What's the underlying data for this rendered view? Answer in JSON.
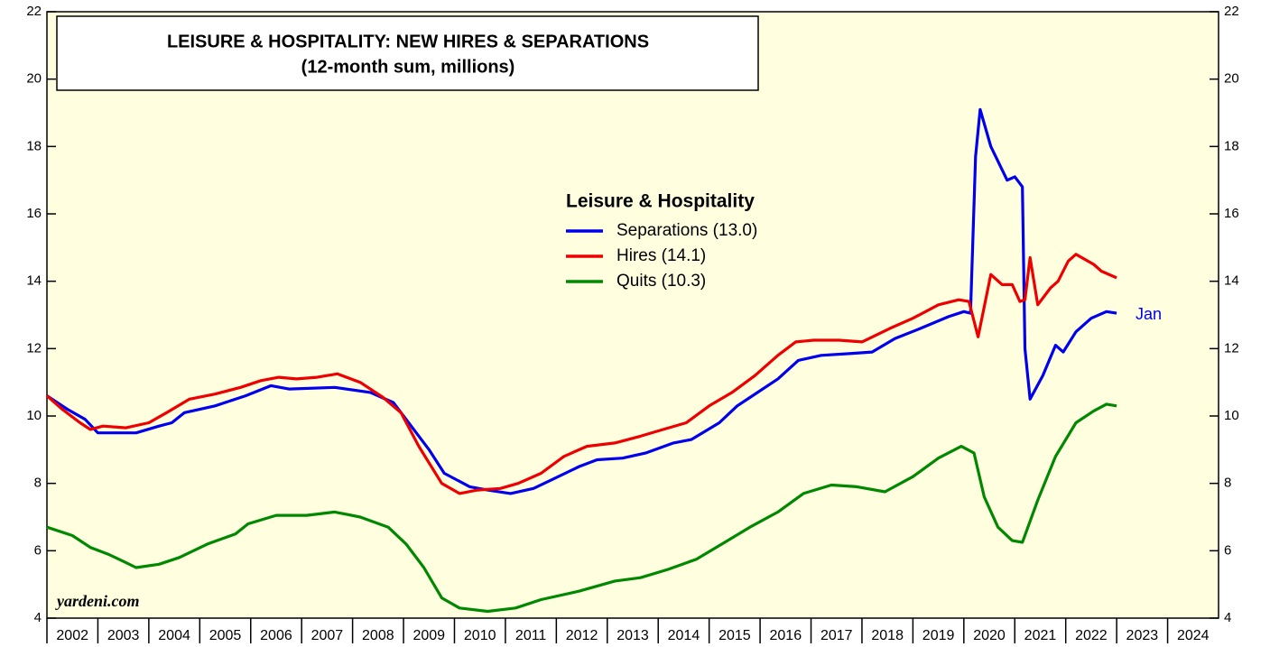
{
  "chart_data": {
    "type": "line",
    "title": "LEISURE & HOSPITALITY: NEW HIRES & SEPARATIONS",
    "subtitle": "(12-month sum, millions)",
    "legend_title": "Leisure & Hospitality",
    "source": "yardeni.com",
    "annotation": "Jan",
    "xlim": [
      2002,
      2025
    ],
    "xticks": [
      2002,
      2003,
      2004,
      2005,
      2006,
      2007,
      2008,
      2009,
      2010,
      2011,
      2012,
      2013,
      2014,
      2015,
      2016,
      2017,
      2018,
      2019,
      2020,
      2021,
      2022,
      2023,
      2024
    ],
    "ylim": [
      4,
      22
    ],
    "yticks": [
      4,
      6,
      8,
      10,
      12,
      14,
      16,
      18,
      20,
      22
    ],
    "series": [
      {
        "name": "Separations (13.0)",
        "color": "#0000ee",
        "x": [
          2002.0,
          2002.4,
          2002.75,
          2003.0,
          2003.75,
          2004.2,
          2004.45,
          2004.7,
          2005.3,
          2005.9,
          2006.4,
          2006.75,
          2007.65,
          2008.35,
          2008.8,
          2009.05,
          2009.5,
          2009.8,
          2010.3,
          2010.65,
          2011.1,
          2011.55,
          2011.9,
          2012.45,
          2012.8,
          2013.3,
          2013.75,
          2014.3,
          2014.65,
          2015.2,
          2015.55,
          2015.8,
          2016.35,
          2016.75,
          2017.2,
          2017.75,
          2018.2,
          2018.65,
          2019.15,
          2019.7,
          2020.0,
          2020.13,
          2020.23,
          2020.32,
          2020.53,
          2020.85,
          2021.0,
          2021.15,
          2021.2,
          2021.3,
          2021.55,
          2021.8,
          2021.95,
          2022.2,
          2022.5,
          2022.8,
          2023.0
        ],
        "values": [
          10.6,
          10.2,
          9.9,
          9.5,
          9.5,
          9.7,
          9.8,
          10.1,
          10.3,
          10.6,
          10.9,
          10.8,
          10.85,
          10.7,
          10.4,
          9.9,
          9.0,
          8.3,
          7.9,
          7.8,
          7.7,
          7.85,
          8.1,
          8.5,
          8.7,
          8.75,
          8.9,
          9.2,
          9.3,
          9.8,
          10.3,
          10.55,
          11.1,
          11.65,
          11.8,
          11.85,
          11.9,
          12.3,
          12.6,
          12.95,
          13.1,
          13.05,
          17.7,
          19.1,
          18.0,
          17.0,
          17.1,
          16.8,
          12.0,
          10.5,
          11.2,
          12.1,
          11.9,
          12.5,
          12.9,
          13.1,
          13.05
        ]
      },
      {
        "name": "Hires (14.1)",
        "color": "#ee0000",
        "x": [
          2002.0,
          2002.3,
          2002.65,
          2002.85,
          2003.1,
          2003.55,
          2004.0,
          2004.35,
          2004.8,
          2005.3,
          2005.8,
          2006.2,
          2006.55,
          2006.9,
          2007.3,
          2007.7,
          2008.15,
          2008.6,
          2008.95,
          2009.3,
          2009.75,
          2010.1,
          2010.45,
          2010.9,
          2011.25,
          2011.7,
          2012.15,
          2012.6,
          2013.15,
          2013.65,
          2014.1,
          2014.55,
          2015.0,
          2015.45,
          2015.9,
          2016.35,
          2016.7,
          2017.05,
          2017.55,
          2018.0,
          2018.55,
          2019.0,
          2019.5,
          2019.9,
          2020.1,
          2020.28,
          2020.53,
          2020.75,
          2020.95,
          2021.1,
          2021.2,
          2021.3,
          2021.45,
          2021.7,
          2021.85,
          2022.05,
          2022.2,
          2022.55,
          2022.7,
          2023.0
        ],
        "values": [
          10.6,
          10.2,
          9.8,
          9.6,
          9.7,
          9.65,
          9.8,
          10.1,
          10.5,
          10.65,
          10.85,
          11.05,
          11.15,
          11.1,
          11.15,
          11.25,
          11.0,
          10.55,
          10.1,
          9.1,
          8.0,
          7.7,
          7.8,
          7.85,
          8.0,
          8.3,
          8.8,
          9.1,
          9.2,
          9.4,
          9.6,
          9.8,
          10.3,
          10.7,
          11.2,
          11.8,
          12.2,
          12.25,
          12.25,
          12.2,
          12.6,
          12.9,
          13.3,
          13.45,
          13.4,
          12.35,
          14.2,
          13.9,
          13.9,
          13.4,
          13.45,
          14.7,
          13.3,
          13.8,
          14.0,
          14.6,
          14.8,
          14.5,
          14.3,
          14.1
        ]
      },
      {
        "name": "Quits (10.3)",
        "color": "#008800",
        "x": [
          2002.0,
          2002.5,
          2002.85,
          2003.2,
          2003.55,
          2003.75,
          2004.2,
          2004.6,
          2005.15,
          2005.7,
          2005.95,
          2006.5,
          2007.1,
          2007.65,
          2008.15,
          2008.7,
          2009.05,
          2009.4,
          2009.75,
          2010.1,
          2010.65,
          2011.2,
          2011.7,
          2012.45,
          2013.15,
          2013.65,
          2014.2,
          2014.75,
          2015.25,
          2015.8,
          2016.35,
          2016.85,
          2017.4,
          2017.9,
          2018.45,
          2019.0,
          2019.5,
          2019.95,
          2020.2,
          2020.4,
          2020.67,
          2020.95,
          2021.15,
          2021.45,
          2021.8,
          2022.2,
          2022.55,
          2022.8,
          2023.0
        ],
        "values": [
          6.7,
          6.45,
          6.1,
          5.9,
          5.65,
          5.5,
          5.6,
          5.8,
          6.2,
          6.5,
          6.8,
          7.05,
          7.05,
          7.15,
          7.0,
          6.7,
          6.2,
          5.5,
          4.6,
          4.3,
          4.2,
          4.3,
          4.55,
          4.8,
          5.1,
          5.2,
          5.45,
          5.75,
          6.2,
          6.7,
          7.15,
          7.7,
          7.95,
          7.9,
          7.75,
          8.2,
          8.75,
          9.1,
          8.9,
          7.6,
          6.7,
          6.3,
          6.25,
          7.5,
          8.8,
          9.8,
          10.15,
          10.35,
          10.3
        ]
      }
    ]
  }
}
